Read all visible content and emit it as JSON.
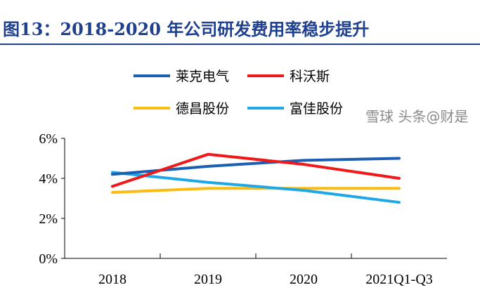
{
  "title": "图13：2018-2020 年公司研发费用率稳步提升",
  "watermark": "雪球 头条@财是",
  "chart_data": {
    "type": "line",
    "categories": [
      "2018",
      "2019",
      "2020",
      "2021Q1-Q3"
    ],
    "yticks": [
      "0%",
      "2%",
      "4%",
      "6%"
    ],
    "ylim": [
      0,
      6
    ],
    "grid": false,
    "legend_position": "top",
    "series": [
      {
        "name": "莱克电气",
        "color": "#1a5fb4",
        "values": [
          4.2,
          4.6,
          4.9,
          5.0
        ]
      },
      {
        "name": "科沃斯",
        "color": "#f01818",
        "values": [
          3.6,
          5.2,
          4.7,
          4.0
        ]
      },
      {
        "name": "德昌股份",
        "color": "#fbbc12",
        "values": [
          3.3,
          3.5,
          3.5,
          3.5
        ]
      },
      {
        "name": "富佳股份",
        "color": "#1ea8e6",
        "values": [
          4.3,
          3.8,
          3.4,
          2.8
        ]
      }
    ]
  }
}
